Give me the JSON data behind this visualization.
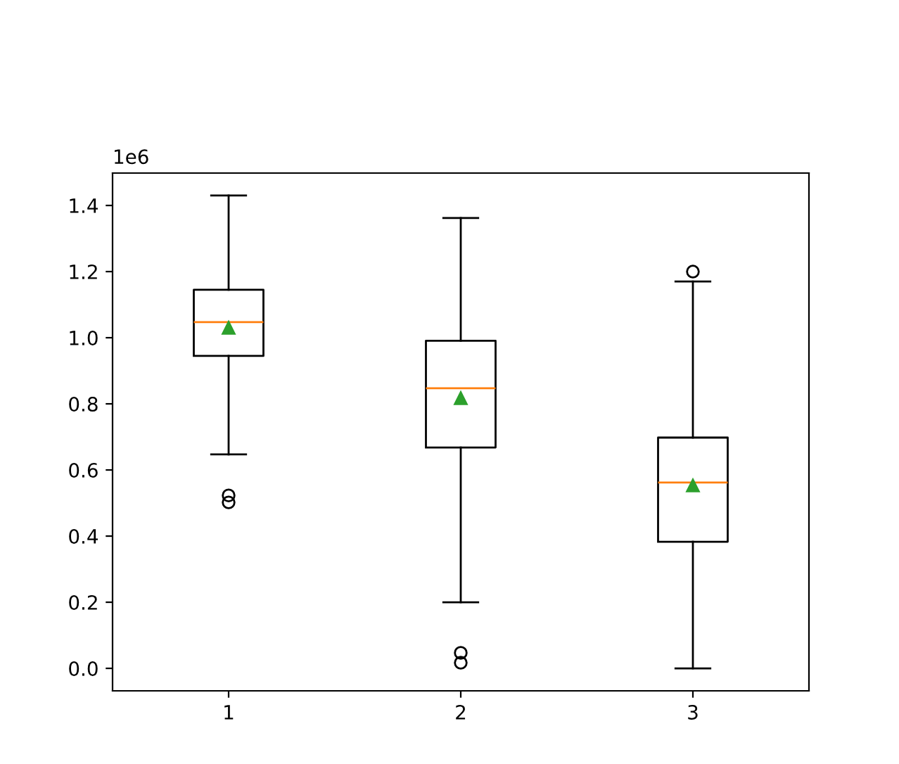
{
  "chart_data": {
    "type": "box",
    "categories": [
      "1",
      "2",
      "3"
    ],
    "boxes": [
      {
        "low": 0.647,
        "q1": 0.945,
        "median": 1.047,
        "q3": 1.145,
        "high": 1.43,
        "mean": 1.03,
        "outliers": [
          0.523,
          0.502
        ]
      },
      {
        "low": 0.2,
        "q1": 0.668,
        "median": 0.847,
        "q3": 0.991,
        "high": 1.362,
        "mean": 0.817,
        "outliers": [
          0.047,
          0.017
        ]
      },
      {
        "low": 0,
        "q1": 0.383,
        "median": 0.562,
        "q3": 0.698,
        "high": 1.17,
        "mean": 0.553,
        "outliers": [
          1.2
        ]
      }
    ],
    "ylim": [
      -0.068,
      1.498
    ],
    "yticks": [
      {
        "value": 0,
        "label": "0.0"
      },
      0.2,
      0.4,
      0.6,
      0.8,
      {
        "value": 1,
        "label": "1.0"
      },
      1.2,
      1.4
    ],
    "annotations": [
      "1e6"
    ],
    "grid": false
  }
}
